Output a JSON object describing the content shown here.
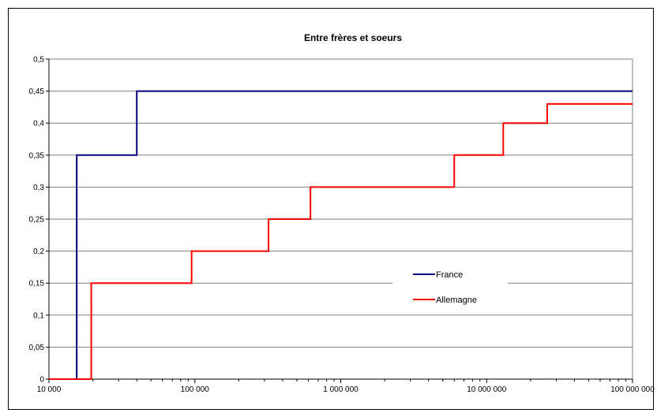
{
  "chart_data": {
    "type": "line",
    "title": "Entre frères et soeurs",
    "xlabel": "",
    "ylabel": "",
    "x_scale": "log",
    "xlim": [
      10000,
      100000000
    ],
    "ylim": [
      0,
      0.5
    ],
    "x_ticks": [
      {
        "value": 10000,
        "label": "10 000"
      },
      {
        "value": 100000,
        "label": "100 000"
      },
      {
        "value": 1000000,
        "label": "1 000 000"
      },
      {
        "value": 10000000,
        "label": "10 000 000"
      },
      {
        "value": 100000000,
        "label": "100 000 000"
      }
    ],
    "y_ticks": [
      {
        "value": 0,
        "label": "0"
      },
      {
        "value": 0.05,
        "label": "0,05"
      },
      {
        "value": 0.1,
        "label": "0,1"
      },
      {
        "value": 0.15,
        "label": "0,15"
      },
      {
        "value": 0.2,
        "label": "0,2"
      },
      {
        "value": 0.25,
        "label": "0,25"
      },
      {
        "value": 0.3,
        "label": "0,3"
      },
      {
        "value": 0.35,
        "label": "0,35"
      },
      {
        "value": 0.4,
        "label": "0,4"
      },
      {
        "value": 0.45,
        "label": "0,45"
      },
      {
        "value": 0.5,
        "label": "0,5"
      }
    ],
    "grid": "horizontal",
    "legend_position": "center-right",
    "series": [
      {
        "name": "France",
        "color": "#000080",
        "step": "post",
        "points": [
          [
            10000,
            0
          ],
          [
            15500,
            0
          ],
          [
            15500,
            0.35
          ],
          [
            40000,
            0.35
          ],
          [
            40000,
            0.45
          ],
          [
            100000000,
            0.45
          ]
        ]
      },
      {
        "name": "Allemagne",
        "color": "#ff0000",
        "step": "post",
        "points": [
          [
            10000,
            0
          ],
          [
            19500,
            0
          ],
          [
            19500,
            0.15
          ],
          [
            95000,
            0.15
          ],
          [
            95000,
            0.2
          ],
          [
            320000,
            0.2
          ],
          [
            320000,
            0.25
          ],
          [
            620000,
            0.25
          ],
          [
            620000,
            0.3
          ],
          [
            6000000,
            0.3
          ],
          [
            6000000,
            0.35
          ],
          [
            13000000,
            0.35
          ],
          [
            13000000,
            0.4
          ],
          [
            26000000,
            0.4
          ],
          [
            26000000,
            0.43
          ],
          [
            100000000,
            0.43
          ]
        ]
      }
    ]
  }
}
